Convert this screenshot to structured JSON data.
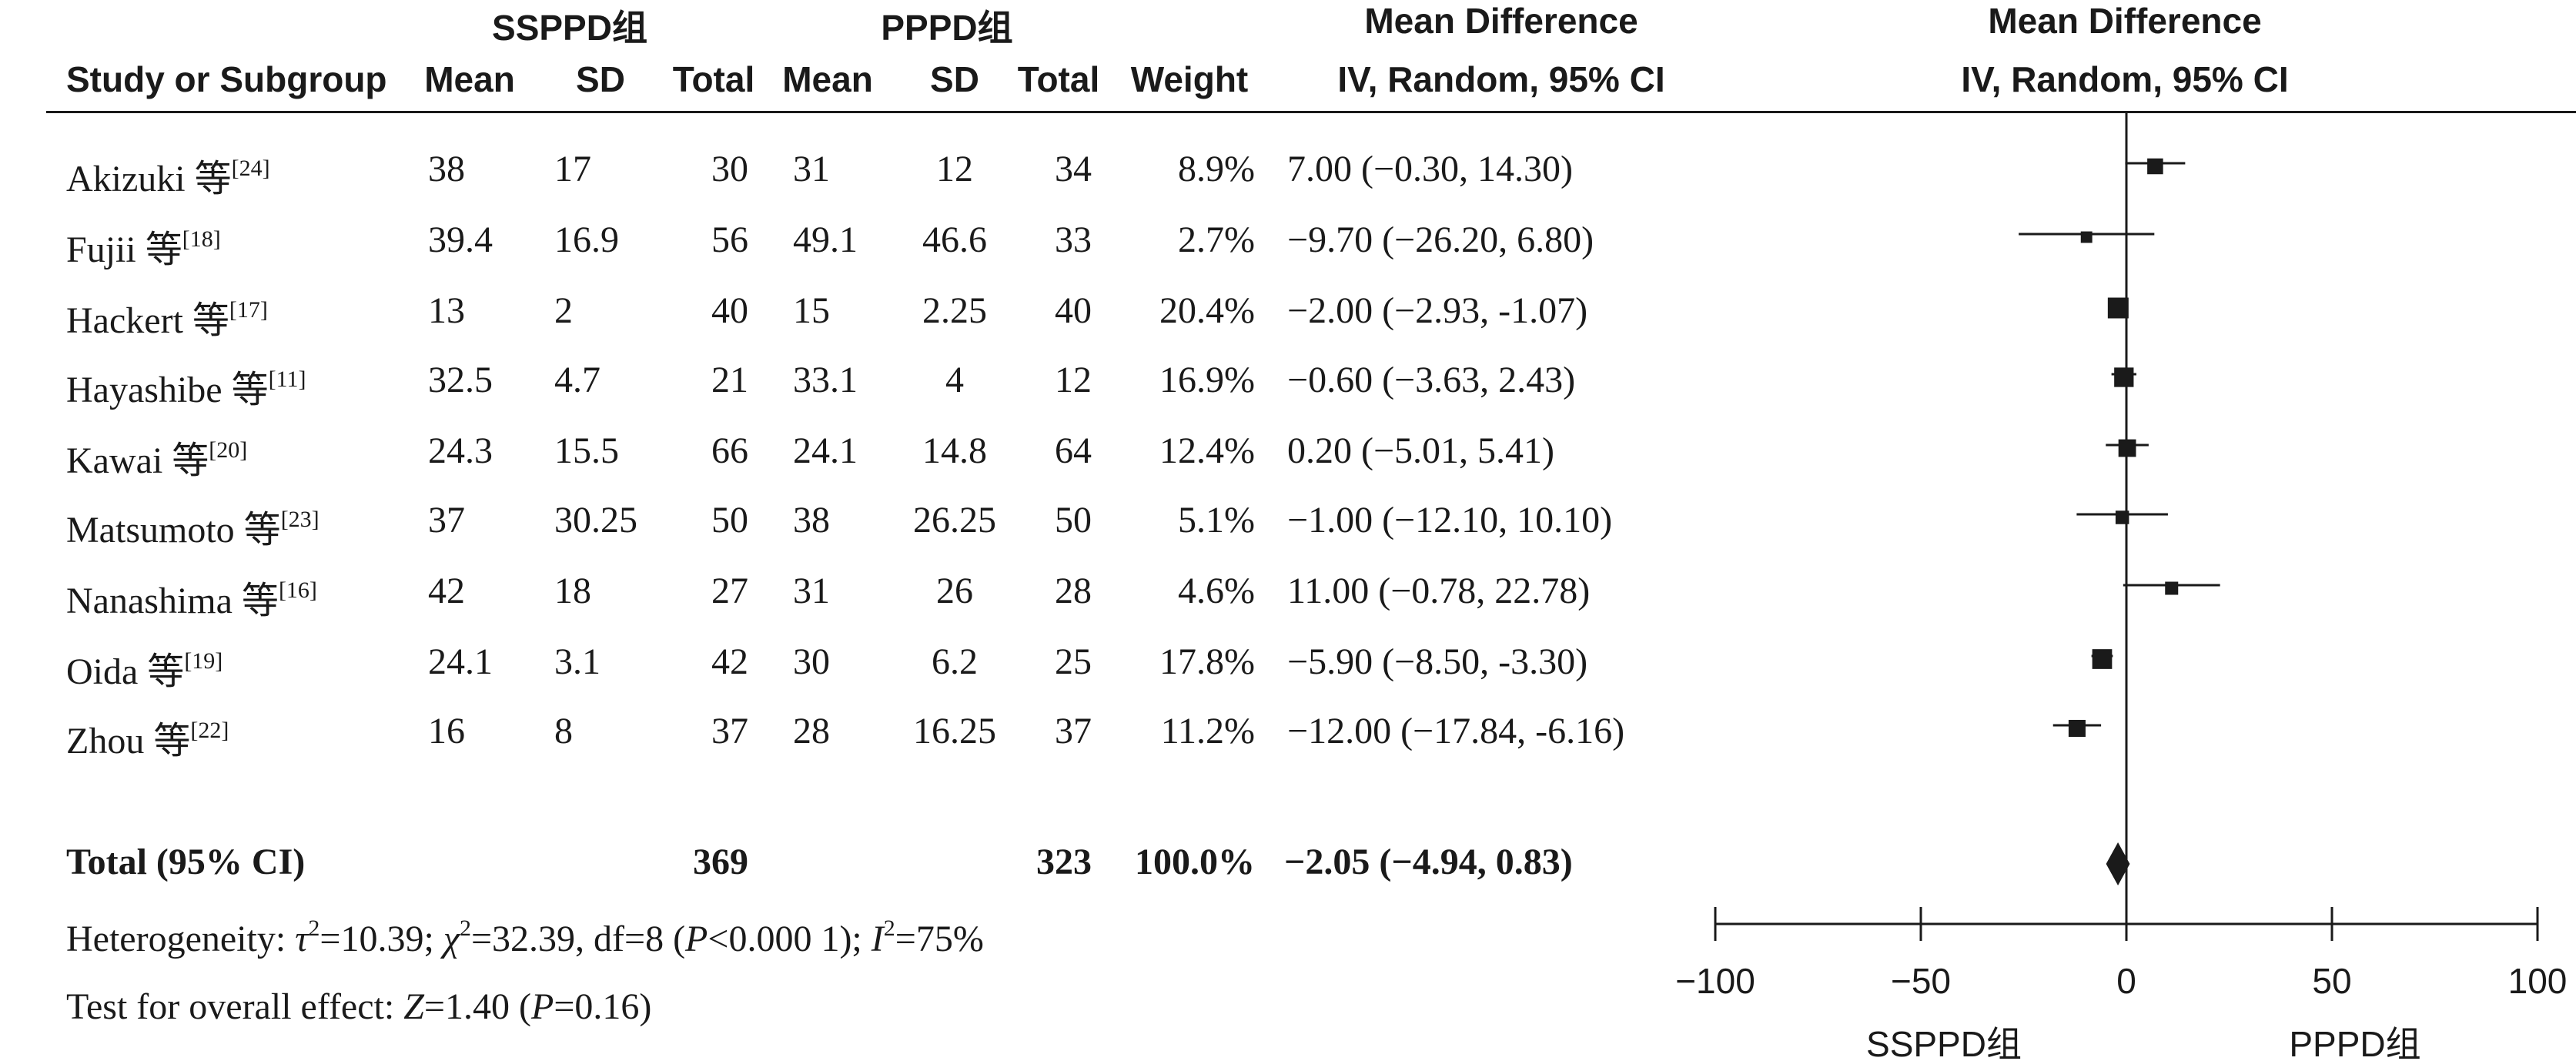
{
  "header": {
    "group1": "SSPPD组",
    "group2": "PPPD组",
    "md_col": "Mean Difference",
    "md_sub": "IV, Random, 95% CI",
    "plot_title": "Mean Difference",
    "plot_sub": "IV, Random, 95% CI",
    "study": "Study or Subgroup",
    "mean1": "Mean",
    "sd1": "SD",
    "total1": "Total",
    "mean2": "Mean",
    "sd2": "SD",
    "total2": "Total",
    "weight": "Weight"
  },
  "studies": [
    {
      "name": "Akizuki 等",
      "ref": "[24]",
      "m1": "38",
      "sd1": "17",
      "n1": "30",
      "m2": "31",
      "sd2": "12",
      "n2": "34",
      "weight": "8.9%",
      "ci": "7.00 (−0.30, 14.30)"
    },
    {
      "name": "Fujii 等",
      "ref": "[18]",
      "m1": "39.4",
      "sd1": "16.9",
      "n1": "56",
      "m2": "49.1",
      "sd2": "46.6",
      "n2": "33",
      "weight": "2.7%",
      "ci": "−9.70 (−26.20, 6.80)"
    },
    {
      "name": "Hackert 等",
      "ref": "[17]",
      "m1": "13",
      "sd1": "2",
      "n1": "40",
      "m2": "15",
      "sd2": "2.25",
      "n2": "40",
      "weight": "20.4%",
      "ci": "−2.00 (−2.93, -1.07)"
    },
    {
      "name": "Hayashibe 等",
      "ref": "[11]",
      "m1": "32.5",
      "sd1": "4.7",
      "n1": "21",
      "m2": "33.1",
      "sd2": "4",
      "n2": "12",
      "weight": "16.9%",
      "ci": "−0.60 (−3.63, 2.43)"
    },
    {
      "name": "Kawai 等",
      "ref": "[20]",
      "m1": "24.3",
      "sd1": "15.5",
      "n1": "66",
      "m2": "24.1",
      "sd2": "14.8",
      "n2": "64",
      "weight": "12.4%",
      "ci": "0.20 (−5.01, 5.41)"
    },
    {
      "name": "Matsumoto 等",
      "ref": "[23]",
      "m1": "37",
      "sd1": "30.25",
      "n1": "50",
      "m2": "38",
      "sd2": "26.25",
      "n2": "50",
      "weight": "5.1%",
      "ci": "−1.00 (−12.10, 10.10)"
    },
    {
      "name": "Nanashima 等",
      "ref": "[16]",
      "m1": "42",
      "sd1": "18",
      "n1": "27",
      "m2": "31",
      "sd2": "26",
      "n2": "28",
      "weight": "4.6%",
      "ci": "11.00 (−0.78, 22.78)"
    },
    {
      "name": "Oida 等",
      "ref": "[19]",
      "m1": "24.1",
      "sd1": "3.1",
      "n1": "42",
      "m2": "30",
      "sd2": "6.2",
      "n2": "25",
      "weight": "17.8%",
      "ci": "−5.90 (−8.50, -3.30)"
    },
    {
      "name": "Zhou 等",
      "ref": "[22]",
      "m1": "16",
      "sd1": "8",
      "n1": "37",
      "m2": "28",
      "sd2": "16.25",
      "n2": "37",
      "weight": "11.2%",
      "ci": "−12.00 (−17.84, -6.16)"
    }
  ],
  "total": {
    "label": "Total (95% CI)",
    "n1": "369",
    "n2": "323",
    "weight": "100.0%",
    "ci": "−2.05 (−4.94, 0.83)"
  },
  "heterogeneity": {
    "prefix": "Heterogeneity: ",
    "tau_sym": "τ",
    "tau_exp": "2",
    "tau_val": "=10.39; ",
    "chi_sym": "χ",
    "chi_exp": "2",
    "chi_val": "=32.39, df=8 (",
    "p_sym": "P",
    "p_val": "<0.000 1); ",
    "i_sym": "I",
    "i_exp": "2",
    "i_val": "=75%"
  },
  "overall": {
    "prefix": "Test for overall effect: ",
    "z_sym": "Z",
    "z_val": "=1.40 (",
    "p_sym": "P",
    "p_val": "=0.16)"
  },
  "axis": {
    "tick_labels": [
      "−100",
      "−50",
      "0",
      "50",
      "100"
    ],
    "favours_left": "SSPPD组",
    "favours_right": "PPPD组"
  },
  "chart_data": {
    "type": "forest",
    "xlim": [
      -100,
      100
    ],
    "ticks": [
      -100,
      -50,
      0,
      50,
      100
    ],
    "null_line": 0,
    "studies": [
      {
        "name": "Akizuki 等",
        "md": 7.0,
        "lo": -0.3,
        "hi": 14.3,
        "weight": 8.9
      },
      {
        "name": "Fujii 等",
        "md": -9.7,
        "lo": -26.2,
        "hi": 6.8,
        "weight": 2.7
      },
      {
        "name": "Hackert 等",
        "md": -2.0,
        "lo": -2.93,
        "hi": -1.07,
        "weight": 20.4
      },
      {
        "name": "Hayashibe 等",
        "md": -0.6,
        "lo": -3.63,
        "hi": 2.43,
        "weight": 16.9
      },
      {
        "name": "Kawai 等",
        "md": 0.2,
        "lo": -5.01,
        "hi": 5.41,
        "weight": 12.4
      },
      {
        "name": "Matsumoto 等",
        "md": -1.0,
        "lo": -12.1,
        "hi": 10.1,
        "weight": 5.1
      },
      {
        "name": "Nanashima 等",
        "md": 11.0,
        "lo": -0.78,
        "hi": 22.78,
        "weight": 4.6
      },
      {
        "name": "Oida 等",
        "md": -5.9,
        "lo": -8.5,
        "hi": -3.3,
        "weight": 17.8
      },
      {
        "name": "Zhou 等",
        "md": -12.0,
        "lo": -17.84,
        "hi": -6.16,
        "weight": 11.2
      }
    ],
    "pooled": {
      "md": -2.05,
      "lo": -4.94,
      "hi": 0.83
    }
  }
}
